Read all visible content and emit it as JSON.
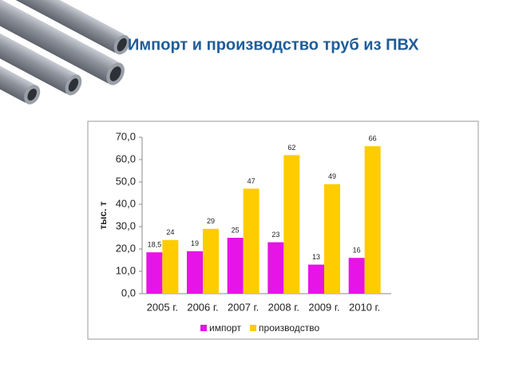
{
  "chart_data": {
    "type": "bar",
    "title": "Импорт и производство труб из ПВХ",
    "y_label": "тыс. т",
    "categories": [
      "2005 г.",
      "2006 г.",
      "2007 г.",
      "2008 г.",
      "2009 г.",
      "2010 г."
    ],
    "series": [
      {
        "name": "импорт",
        "color": "#e614e6",
        "values": [
          18.5,
          19,
          25,
          23,
          13,
          16
        ],
        "value_labels": [
          "18,5",
          "19",
          "25",
          "23",
          "13",
          "16"
        ]
      },
      {
        "name": "производство",
        "color": "#ffcc00",
        "values": [
          24,
          29,
          47,
          62,
          49,
          66
        ]
      }
    ],
    "ylim": [
      0,
      70
    ],
    "yticks": [
      {
        "value": 0,
        "label": "0,0"
      },
      {
        "value": 10,
        "label": "10,0"
      },
      {
        "value": 20,
        "label": "20,0"
      },
      {
        "value": 30,
        "label": "30,0"
      },
      {
        "value": 40,
        "label": "40,0"
      },
      {
        "value": 50,
        "label": "50,0"
      },
      {
        "value": 60,
        "label": "60,0"
      },
      {
        "value": 70,
        "label": "70,0"
      }
    ],
    "legend": "bottom"
  }
}
